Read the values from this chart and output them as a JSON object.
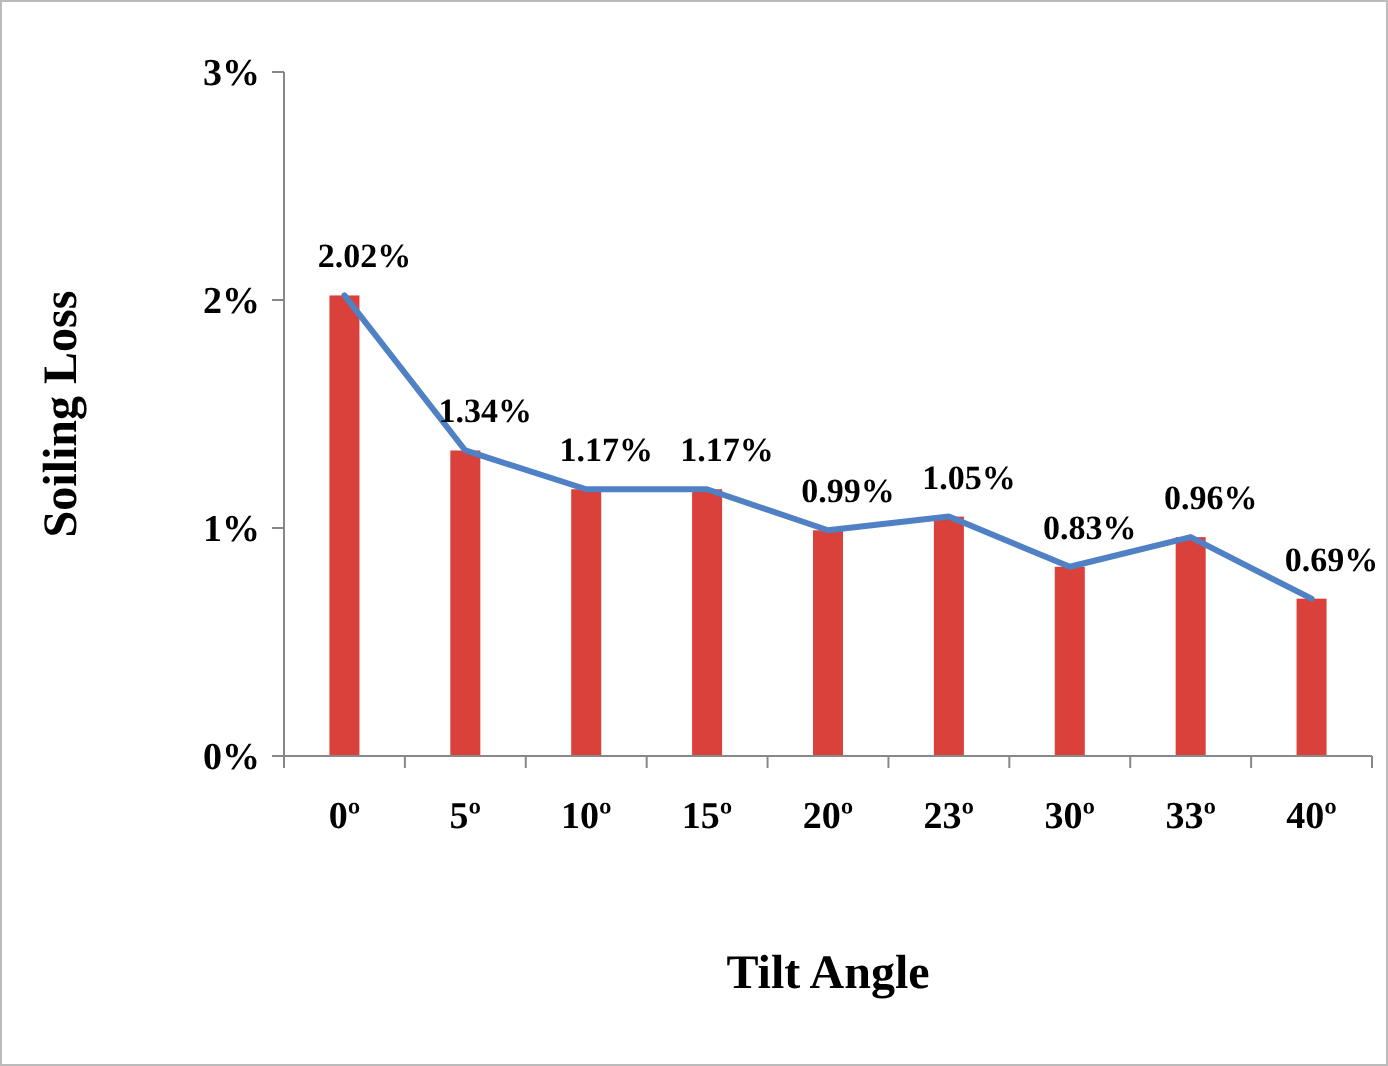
{
  "chart_data": {
    "type": "bar",
    "xlabel": "Tilt Angle",
    "ylabel": "Soiling Loss",
    "categories": [
      "0º",
      "5º",
      "10º",
      "15º",
      "20º",
      "23º",
      "30º",
      "33º",
      "40º"
    ],
    "series": [
      {
        "color": "#d9413a",
        "values": [
          2.02,
          1.34,
          1.17,
          1.17,
          0.99,
          1.05,
          0.83,
          0.96,
          0.69
        ],
        "value_labels": [
          "2.02%",
          "1.34%",
          "1.17%",
          "1.17%",
          "0.99%",
          "1.05%",
          "0.83%",
          "0.96%",
          "0.69%"
        ]
      },
      {
        "type": "line",
        "color": "#4f81c4",
        "values": [
          2.02,
          1.34,
          1.17,
          1.17,
          0.99,
          1.05,
          0.83,
          0.96,
          0.69
        ]
      }
    ],
    "ylim": [
      0,
      3
    ],
    "yticks": [
      {
        "value": 0,
        "label": "0%"
      },
      {
        "value": 1,
        "label": "1%"
      },
      {
        "value": 2,
        "label": "2%"
      },
      {
        "value": 3,
        "label": "3%"
      }
    ],
    "grid": false,
    "marker": "none",
    "line_style": "solid"
  }
}
